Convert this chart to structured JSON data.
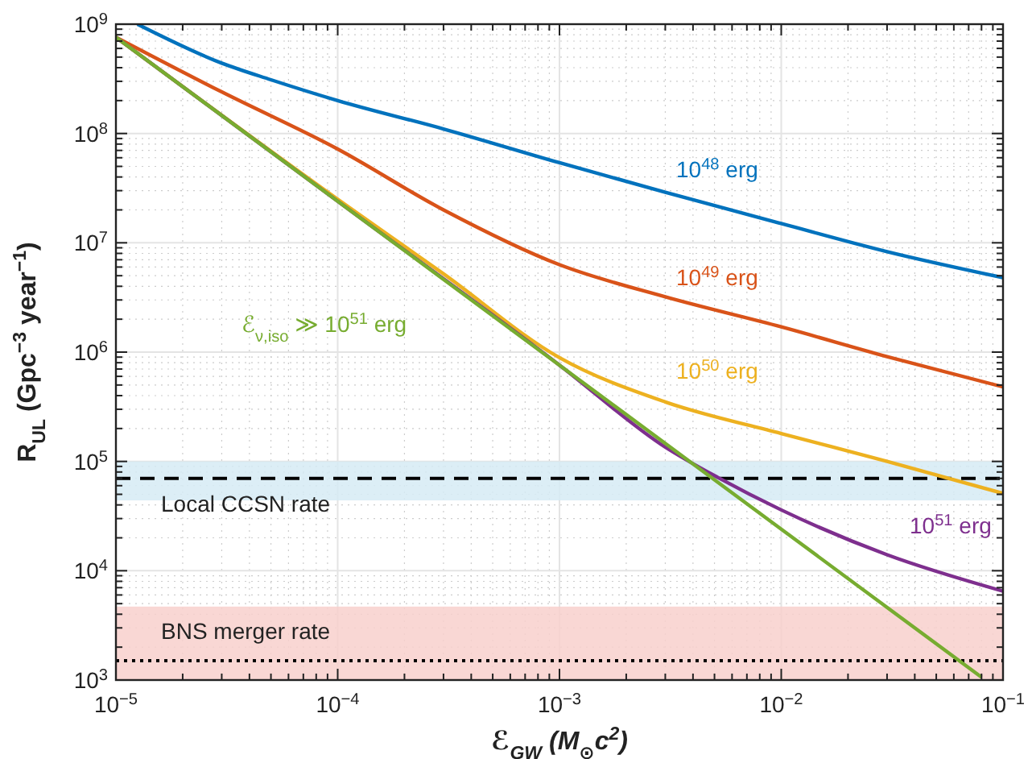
{
  "chart_data": {
    "type": "line",
    "xlabel": "ℰ$_{GW}$ (M$_{⊙}$c$^{2}$)",
    "ylabel": "R$_{UL}$ (Gpc$^{−3}$ year$^{−1}$)",
    "log": "xy",
    "grid": true,
    "marker": "none",
    "line_style": "solid",
    "xlim": [
      1e-05,
      0.1
    ],
    "ylim": [
      1000,
      1000000000
    ],
    "xticks": [
      {
        "value": 1e-05,
        "label": "10$^{−5}$"
      },
      {
        "value": 0.0001,
        "label": "10$^{−4}$"
      },
      {
        "value": 0.001,
        "label": "10$^{−3}$"
      },
      {
        "value": 0.01,
        "label": "10$^{−2}$"
      },
      {
        "value": 0.1,
        "label": "10$^{−1}$"
      }
    ],
    "yticks": [
      {
        "value": 1000,
        "label": "10$^{3}$"
      },
      {
        "value": 10000,
        "label": "10$^{4}$"
      },
      {
        "value": 100000,
        "label": "10$^{5}$"
      },
      {
        "value": 1000000,
        "label": "10$^{6}$"
      },
      {
        "value": 10000000,
        "label": "10$^{7}$"
      },
      {
        "value": 100000000,
        "label": "10$^{8}$"
      },
      {
        "value": 1000000000,
        "label": "10$^{9}$"
      }
    ],
    "series": [
      {
        "name": "10$^{48}$ erg",
        "color": "#0072bd",
        "x": [
          1.25e-05,
          3e-05,
          5e-05,
          0.0001,
          0.0003,
          0.001,
          0.003,
          0.01,
          0.03,
          0.1
        ],
        "values": [
          1000000000,
          440000000,
          310000000,
          200000000,
          110000000,
          54000000,
          29000000,
          15000000,
          8300000,
          4800000
        ]
      },
      {
        "name": "10$^{49}$ erg",
        "color": "#d95319",
        "x": [
          1e-05,
          3e-05,
          0.0001,
          0.0003,
          0.001,
          0.003,
          0.01,
          0.03,
          0.1
        ],
        "values": [
          760000000,
          240000000,
          72000000,
          20000000,
          6300000,
          3200000,
          1700000,
          910000,
          480000
        ]
      },
      {
        "name": "10$^{50}$ erg",
        "color": "#edb120",
        "x": [
          1e-05,
          0.0001,
          0.0003,
          0.001,
          0.003,
          0.01,
          0.03,
          0.1
        ],
        "values": [
          760000000,
          25000000,
          5200000,
          890000,
          350000,
          180000,
          100000,
          51000
        ]
      },
      {
        "name": "10$^{51}$ erg",
        "color": "#7e2f8e",
        "x": [
          1e-05,
          0.0001,
          0.001,
          0.003,
          0.0052,
          0.01,
          0.03,
          0.1
        ],
        "values": [
          760000000,
          24000000,
          760000,
          135000,
          71000,
          36000,
          14000,
          6500
        ]
      },
      {
        "name": "ℰ$_{ν,iso}$ ≫ 10$^{51}$ erg",
        "color": "#77ac30",
        "x": [
          1e-05,
          0.0001,
          0.001,
          0.01,
          0.08
        ],
        "values": [
          760000000,
          24000000,
          760000,
          24000,
          1060
        ]
      }
    ],
    "ref_lines": [
      {
        "axis": "y",
        "value": 70000,
        "color": "#000000",
        "line_style": "dashed"
      },
      {
        "axis": "y",
        "value": 1500,
        "color": "#000000",
        "line_style": "dotted"
      }
    ],
    "bands": [
      {
        "axis": "y",
        "from": 44000,
        "to": 100000,
        "label": "Local CCSN rate",
        "color": "#d6ebf5"
      },
      {
        "axis": "y",
        "from": 1000,
        "to": 4700,
        "label": "BNS merger rate",
        "color": "#f8d0cc"
      }
    ]
  }
}
